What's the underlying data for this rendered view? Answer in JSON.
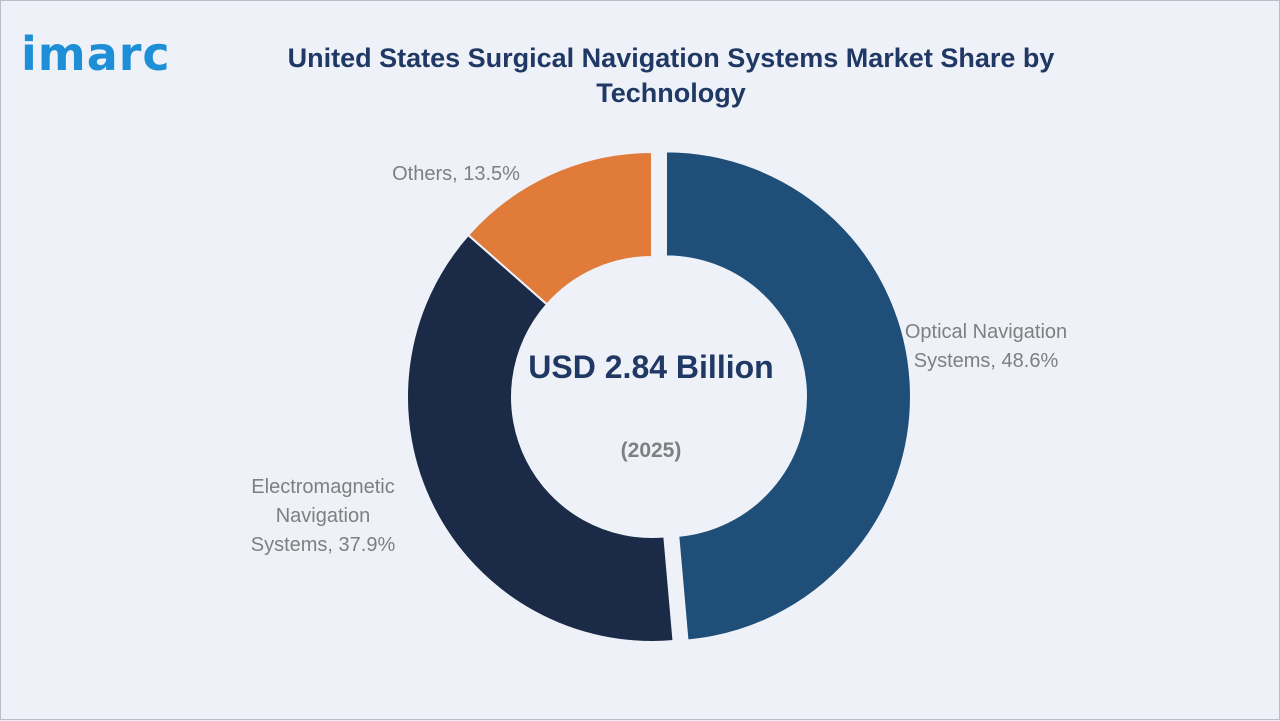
{
  "brand": {
    "logo_text": "imarc"
  },
  "chart_data": {
    "type": "pie",
    "title": "United States Surgical Navigation Systems Market Share by Technology",
    "center_text": "USD 2.84 Billion",
    "center_subtext": "(2025)",
    "slices": [
      {
        "label": "Optical Navigation Systems",
        "value": 48.6,
        "display": "Optical Navigation Systems, 48.6%",
        "color": "#1f4e79",
        "exploded": true
      },
      {
        "label": "Electromagnetic Navigation Systems",
        "value": 37.9,
        "display": "Electromagnetic Navigation Systems, 37.9%",
        "color": "#1b2a47",
        "exploded": false
      },
      {
        "label": "Others",
        "value": 13.5,
        "display": "Others, 13.5%",
        "color": "#e07b39",
        "exploded": false
      }
    ]
  }
}
